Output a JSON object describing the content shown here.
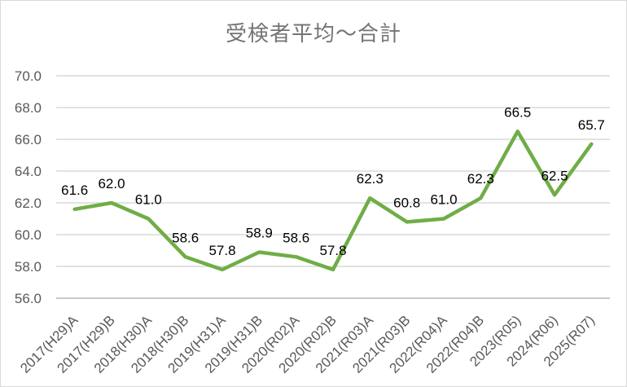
{
  "chart_data": {
    "type": "line",
    "title": "受検者平均～合計",
    "categories": [
      "2017(H29)A",
      "2017(H29)B",
      "2018(H30)A",
      "2018(H30)B",
      "2019(H31)A",
      "2019(H31)B",
      "2020(R02)A",
      "2020(R02)B",
      "2021(R03)A",
      "2021(R03)B",
      "2022(R04)A",
      "2022(R04)B",
      "2023(R05)",
      "2024(R06)",
      "2025(R07)"
    ],
    "values": [
      61.6,
      62.0,
      61.0,
      58.6,
      57.8,
      58.9,
      58.6,
      57.8,
      62.3,
      60.8,
      61.0,
      62.3,
      66.5,
      62.5,
      65.7
    ],
    "data_labels": [
      "61.6",
      "62.0",
      "61.0",
      "58.6",
      "57.8",
      "58.9",
      "58.6",
      "57.8",
      "62.3",
      "60.8",
      "61.0",
      "62.3",
      "66.5",
      "62.5",
      "65.7"
    ],
    "ylim": [
      56.0,
      70.0
    ],
    "ytick_step": 2.0,
    "ytick_labels": [
      "70.0",
      "68.0",
      "66.0",
      "64.0",
      "62.0",
      "60.0",
      "58.0",
      "56.0"
    ],
    "xlabel": "",
    "ylabel": "",
    "grid": "horizontal",
    "legend": "none",
    "x_label_rotation_deg": -45,
    "colors": {
      "line": "#70AD47",
      "data_label": "#000000",
      "axis_text": "#595959",
      "gridline": "#D9D9D9",
      "axis_line": "#BFBFBF",
      "title": "#747474",
      "background": "#FFFFFF",
      "frame_border": "#D9D9D9"
    }
  }
}
